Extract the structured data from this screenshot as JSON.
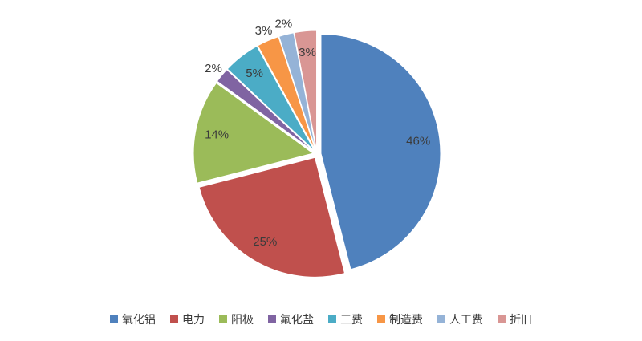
{
  "chart_data": {
    "type": "pie",
    "title": "",
    "categories": [
      "氧化铝",
      "电力",
      "阳极",
      "氟化盐",
      "三费",
      "制造费",
      "人工费",
      "折旧"
    ],
    "values": [
      46,
      25,
      14,
      2,
      5,
      3,
      2,
      3
    ],
    "data_labels": [
      "46%",
      "25%",
      "14%",
      "2%",
      "5%",
      "3%",
      "2%",
      "3%"
    ],
    "colors": [
      "#4f81bd",
      "#c0504d",
      "#9bbb59",
      "#8064a2",
      "#4bacc6",
      "#f79646",
      "#95b3d7",
      "#d99694"
    ],
    "label_placement": [
      "inside",
      "inside",
      "inside",
      "outside",
      "inside",
      "outside",
      "outside",
      "inside"
    ],
    "unit": "%",
    "start_angle_deg": 0,
    "direction": "clockwise",
    "exploded": true,
    "legend_position": "bottom",
    "label_color": "#3b3b3b",
    "background_color": "#ffffff"
  }
}
